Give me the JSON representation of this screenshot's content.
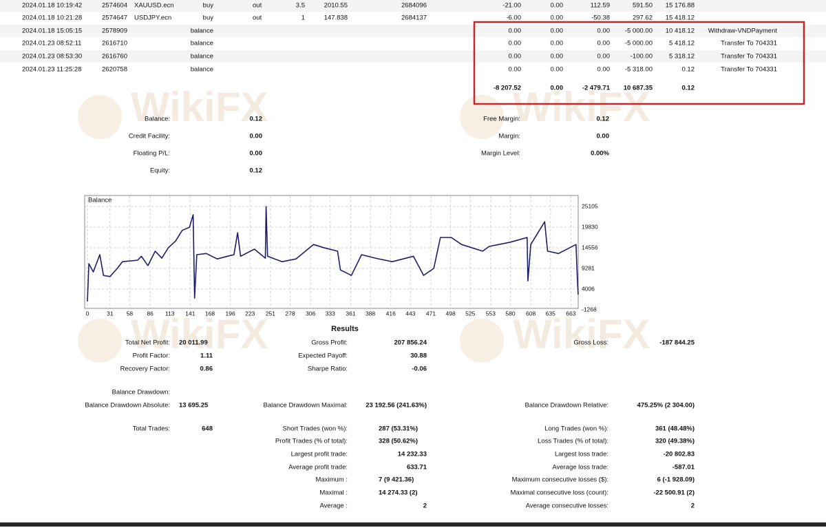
{
  "watermark": "WikiFX",
  "table": {
    "rows": [
      {
        "time": "2024.01.18 10:19:42",
        "ticket": "2574604",
        "item": "XAUUSD.ecn",
        "type": "buy",
        "direction": "out",
        "size": "3.5",
        "price": "2010.55",
        "order": "2684096",
        "commission": "-21.00",
        "taxes": "0.00",
        "swap": "112.59",
        "profit": "591.50",
        "balance": "15 176.88"
      },
      {
        "time": "2024.01.18 10:21:28",
        "ticket": "2574647",
        "item": "USDJPY.ecn",
        "type": "buy",
        "direction": "out",
        "size": "1",
        "price": "147.838",
        "order": "2684137",
        "commission": "-6.00",
        "taxes": "0.00",
        "swap": "-50.38",
        "profit": "297.62",
        "balance": "15 418.12"
      },
      {
        "time": "2024.01.18 15:05:15",
        "ticket": "2578909",
        "type": "balance",
        "commission": "0.00",
        "taxes": "0.00",
        "swap": "0.00",
        "profit": "-5 000.00",
        "balance": "10 418.12",
        "comment": "Withdraw-VNDPayment"
      },
      {
        "time": "2024.01.23 08:52:11",
        "ticket": "2616710",
        "type": "balance",
        "commission": "0.00",
        "taxes": "0.00",
        "swap": "0.00",
        "profit": "-5 000.00",
        "balance": "5 418.12",
        "comment": "Transfer To 704331"
      },
      {
        "time": "2024.01.23 08:53:30",
        "ticket": "2616760",
        "type": "balance",
        "commission": "0.00",
        "taxes": "0.00",
        "swap": "0.00",
        "profit": "-100.00",
        "balance": "5 318.12",
        "comment": "Transfer To 704331"
      },
      {
        "time": "2024.01.23 11:25:28",
        "ticket": "2620758",
        "type": "balance",
        "commission": "0.00",
        "taxes": "0.00",
        "swap": "0.00",
        "profit": "-5 318.00",
        "balance": "0.12",
        "comment": "Transfer To 704331"
      }
    ],
    "totals": {
      "commission": "-8 207.52",
      "taxes": "0.00",
      "swap": "-2 479.71",
      "profit": "10 687.35",
      "balance": "0.12"
    }
  },
  "summary": {
    "left": [
      [
        "Balance:",
        "0.12"
      ],
      [
        "Credit Facility:",
        "0.00"
      ],
      [
        "Floating P/L:",
        "0.00"
      ],
      [
        "Equity:",
        "0.12"
      ]
    ],
    "right": [
      [
        "Free Margin:",
        "0.12"
      ],
      [
        "Margin:",
        "0.00"
      ],
      [
        "Margin Level:",
        "0.00%"
      ]
    ]
  },
  "chart_data": {
    "type": "line",
    "title": "Balance",
    "color": "#1c1c6b",
    "grid": true,
    "x": [
      0,
      2,
      8,
      17,
      22,
      31,
      41,
      48,
      69,
      74,
      83,
      93,
      102,
      111,
      121,
      130,
      140,
      145,
      147,
      150,
      163,
      178,
      192,
      201,
      206,
      210,
      229,
      244,
      245,
      247,
      267,
      286,
      310,
      324,
      343,
      347,
      362,
      376,
      395,
      418,
      447,
      461,
      475,
      484,
      499,
      513,
      542,
      551,
      580,
      603,
      604,
      608,
      627,
      631,
      646,
      670,
      672,
      673
    ],
    "values": [
      845,
      10500,
      8400,
      12800,
      7500,
      7200,
      9300,
      11000,
      11400,
      12400,
      10000,
      13700,
      11900,
      14600,
      16300,
      19000,
      19800,
      23000,
      1700,
      12800,
      13100,
      11700,
      12400,
      12800,
      18400,
      12400,
      14200,
      11900,
      25100,
      12400,
      11000,
      11700,
      15400,
      14600,
      13700,
      8900,
      7500,
      12800,
      11900,
      11000,
      12400,
      7500,
      9300,
      17200,
      17200,
      15400,
      13700,
      14900,
      16000,
      17200,
      6100,
      15400,
      21200,
      13700,
      13100,
      15400,
      6100,
      2600
    ],
    "xlim": [
      0,
      673
    ],
    "ylim": [
      -1268,
      27000
    ],
    "xticks": [
      0,
      31,
      58,
      86,
      113,
      141,
      168,
      196,
      223,
      251,
      278,
      306,
      333,
      361,
      388,
      416,
      443,
      471,
      498,
      525,
      553,
      580,
      608,
      635,
      663
    ],
    "yticks": [
      -1268,
      4006,
      9281,
      14556,
      19830,
      25105
    ]
  },
  "results": {
    "title": "Results",
    "items": [
      [
        "Total Net Profit:",
        "20 011.99"
      ],
      [
        "Gross Profit:",
        "207 856.24"
      ],
      [
        "Gross Loss:",
        "-187 844.25"
      ],
      [
        "Profit Factor:",
        "1.11"
      ],
      [
        "Expected Payoff:",
        "30.88"
      ],
      [
        "Recovery Factor:",
        "0.86"
      ],
      [
        "Sharpe Ratio:",
        "-0.06"
      ],
      [
        "Balance Drawdown:"
      ],
      [
        "Balance Drawdown Absolute:",
        "13 695.25"
      ],
      [
        "Balance Drawdown Maximal:",
        "23 192.56 (241.63%)"
      ],
      [
        "Balance Drawdown Relative:",
        "475.25% (2 304.00)"
      ],
      [
        "Total Trades:",
        "648"
      ],
      [
        "Short Trades (won %):",
        "287 (53.31%)"
      ],
      [
        "Long Trades (won %):",
        "361 (48.48%)"
      ],
      [
        "Profit Trades (% of total):",
        "328 (50.62%)"
      ],
      [
        "Loss Trades (% of total):",
        "320 (49.38%)"
      ],
      [
        "Largest profit trade:",
        "14 232.33"
      ],
      [
        "Largest loss trade:",
        "-20 802.83"
      ],
      [
        "Average profit trade:",
        "633.71"
      ],
      [
        "Average loss trade:",
        "-587.01"
      ],
      [
        "Maximum :",
        "7 (9 421.36)"
      ],
      [
        "Maximum consecutive losses ($):",
        "6 (-1 928.09)"
      ],
      [
        "Maximal :",
        "14 274.33 (2)"
      ],
      [
        "Maximal consecutive loss (count):",
        "-22 500.91 (2)"
      ],
      [
        "Average :",
        "2"
      ],
      [
        "Average consecutive losses:",
        "2"
      ]
    ]
  }
}
